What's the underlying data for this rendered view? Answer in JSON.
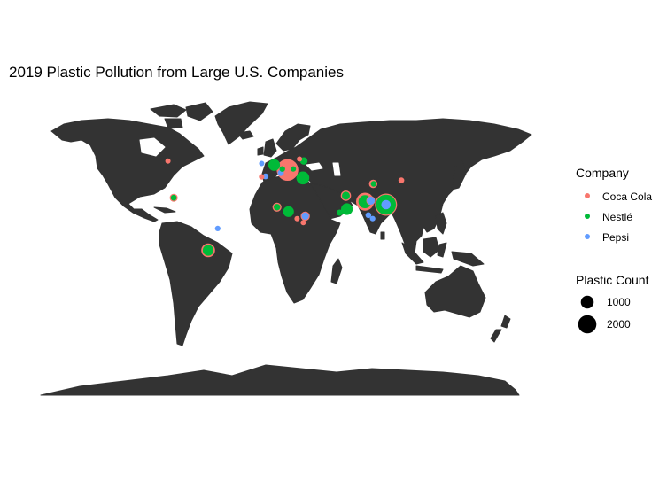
{
  "chart_data": {
    "type": "scatter",
    "title": "2019 Plastic Pollution from Large U.S. Companies",
    "xlabel": "",
    "ylabel": "",
    "x_axis": "longitude",
    "y_axis": "latitude",
    "xlim": [
      -180,
      180
    ],
    "ylim": [
      -90,
      84
    ],
    "grid": false,
    "background": "world map",
    "legend": {
      "placement": "right",
      "company": {
        "title": "Company",
        "entries": [
          {
            "name": "Coca Cola",
            "color": "#F8766D"
          },
          {
            "name": "Nestlé",
            "color": "#00BA38"
          },
          {
            "name": "Pepsi",
            "color": "#619CFF"
          }
        ]
      },
      "size": {
        "title": "Plastic Count",
        "entries": [
          {
            "label": "1000",
            "value": 1000
          },
          {
            "label": "2000",
            "value": 2000
          }
        ]
      }
    },
    "series": [
      {
        "name": "Coca Cola",
        "color": "#F8766D",
        "points": [
          {
            "lon": -106,
            "lat": 56,
            "count": 120
          },
          {
            "lon": 31.5,
            "lat": 58,
            "count": 120
          },
          {
            "lon": 19,
            "lat": 47,
            "count": 2200
          },
          {
            "lon": -8,
            "lat": 40,
            "count": 140
          },
          {
            "lon": 108.5,
            "lat": 33,
            "count": 320
          },
          {
            "lon": 138,
            "lat": 36.5,
            "count": 160
          },
          {
            "lon": -100,
            "lat": 19,
            "count": 300
          },
          {
            "lon": 8,
            "lat": 9.5,
            "count": 380
          },
          {
            "lon": 29,
            "lat": -2,
            "count": 120
          },
          {
            "lon": 35.5,
            "lat": -6,
            "count": 130
          },
          {
            "lon": 37.5,
            "lat": 0.5,
            "count": 400
          },
          {
            "lon": 80,
            "lat": 21,
            "count": 500
          },
          {
            "lon": 100,
            "lat": 15,
            "count": 1500
          },
          {
            "lon": 122,
            "lat": 12,
            "count": 2300
          },
          {
            "lon": -64,
            "lat": -34,
            "count": 900
          },
          {
            "lon": 106,
            "lat": 16,
            "count": 380
          }
        ]
      },
      {
        "name": "Nestlé",
        "color": "#00BA38",
        "points": [
          {
            "lon": 5,
            "lat": 52,
            "count": 650
          },
          {
            "lon": 13.5,
            "lat": 48,
            "count": 150
          },
          {
            "lon": 25,
            "lat": 48,
            "count": 140
          },
          {
            "lon": 36,
            "lat": 56,
            "count": 260
          },
          {
            "lon": 35,
            "lat": 39,
            "count": 780
          },
          {
            "lon": 109,
            "lat": 33,
            "count": 150
          },
          {
            "lon": -100,
            "lat": 19,
            "count": 160
          },
          {
            "lon": 8,
            "lat": 9.5,
            "count": 200
          },
          {
            "lon": 20,
            "lat": 5,
            "count": 550
          },
          {
            "lon": 80,
            "lat": 21,
            "count": 300
          },
          {
            "lon": 81,
            "lat": 7.5,
            "count": 650
          },
          {
            "lon": 73.5,
            "lat": 4,
            "count": 180
          },
          {
            "lon": 100,
            "lat": 15,
            "count": 800
          },
          {
            "lon": 122,
            "lat": 12,
            "count": 1900
          },
          {
            "lon": -64,
            "lat": -34,
            "count": 550
          }
        ]
      },
      {
        "name": "Pepsi",
        "color": "#619CFF",
        "points": [
          {
            "lon": -8,
            "lat": 53.5,
            "count": 120
          },
          {
            "lon": -4,
            "lat": 40.5,
            "count": 160
          },
          {
            "lon": 12,
            "lat": 44,
            "count": 180
          },
          {
            "lon": 37.5,
            "lat": 0.5,
            "count": 250
          },
          {
            "lon": 106,
            "lat": 16,
            "count": 300
          },
          {
            "lon": 103.5,
            "lat": 1.5,
            "count": 160
          },
          {
            "lon": 108,
            "lat": -2,
            "count": 140
          },
          {
            "lon": 122,
            "lat": 12,
            "count": 420
          },
          {
            "lon": -54,
            "lat": -12,
            "count": 140
          }
        ]
      }
    ]
  }
}
